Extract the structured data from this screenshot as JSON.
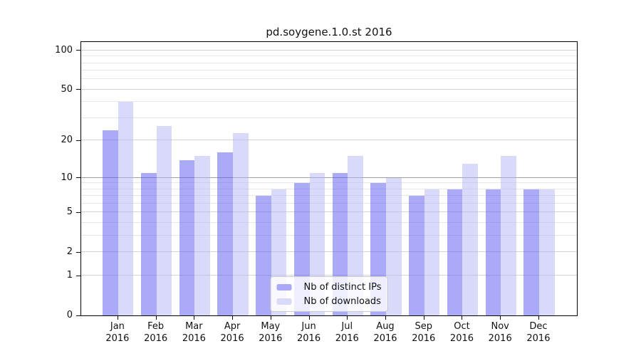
{
  "chart_data": {
    "type": "bar",
    "title": "pd.soygene.1.0.st 2016",
    "categories": [
      "Jan",
      "Feb",
      "Mar",
      "Apr",
      "May",
      "Jun",
      "Jul",
      "Aug",
      "Sep",
      "Oct",
      "Nov",
      "Dec"
    ],
    "year_label": "2016",
    "series": [
      {
        "key": "distinct-ips",
        "name": "Nb of distinct IPs",
        "color": "#a9a9f5",
        "fill": "rgba(85,85,240,0.5)",
        "values": [
          24,
          11,
          14,
          16,
          7,
          9,
          11,
          9,
          7,
          8,
          8,
          8
        ]
      },
      {
        "key": "downloads",
        "name": "Nb of downloads",
        "color": "#d9d9f8",
        "fill": "rgba(180,180,243,0.5)",
        "values": [
          40,
          26,
          15,
          23,
          8,
          11,
          15,
          10,
          8,
          13,
          15,
          8
        ]
      }
    ],
    "y_axis": {
      "scale": "log1p",
      "ticks": [
        0,
        1,
        2,
        5,
        10,
        20,
        50,
        100
      ],
      "minor_gridlines": [
        3,
        4,
        6,
        7,
        8,
        9,
        30,
        40,
        60,
        70,
        80,
        90
      ],
      "emphasized_gridline": 10,
      "range": [
        0,
        115
      ]
    },
    "x_axis": {
      "tick_count": 12
    },
    "legend": {
      "position": "lower center"
    },
    "grid": true,
    "colors": {
      "grid_major": "#d4d4d4",
      "grid_minor": "#e7e7e7",
      "grid_emphasis": "#9f9f9f",
      "axis": "#000000",
      "text": "#111111",
      "background": "#ffffff"
    }
  }
}
